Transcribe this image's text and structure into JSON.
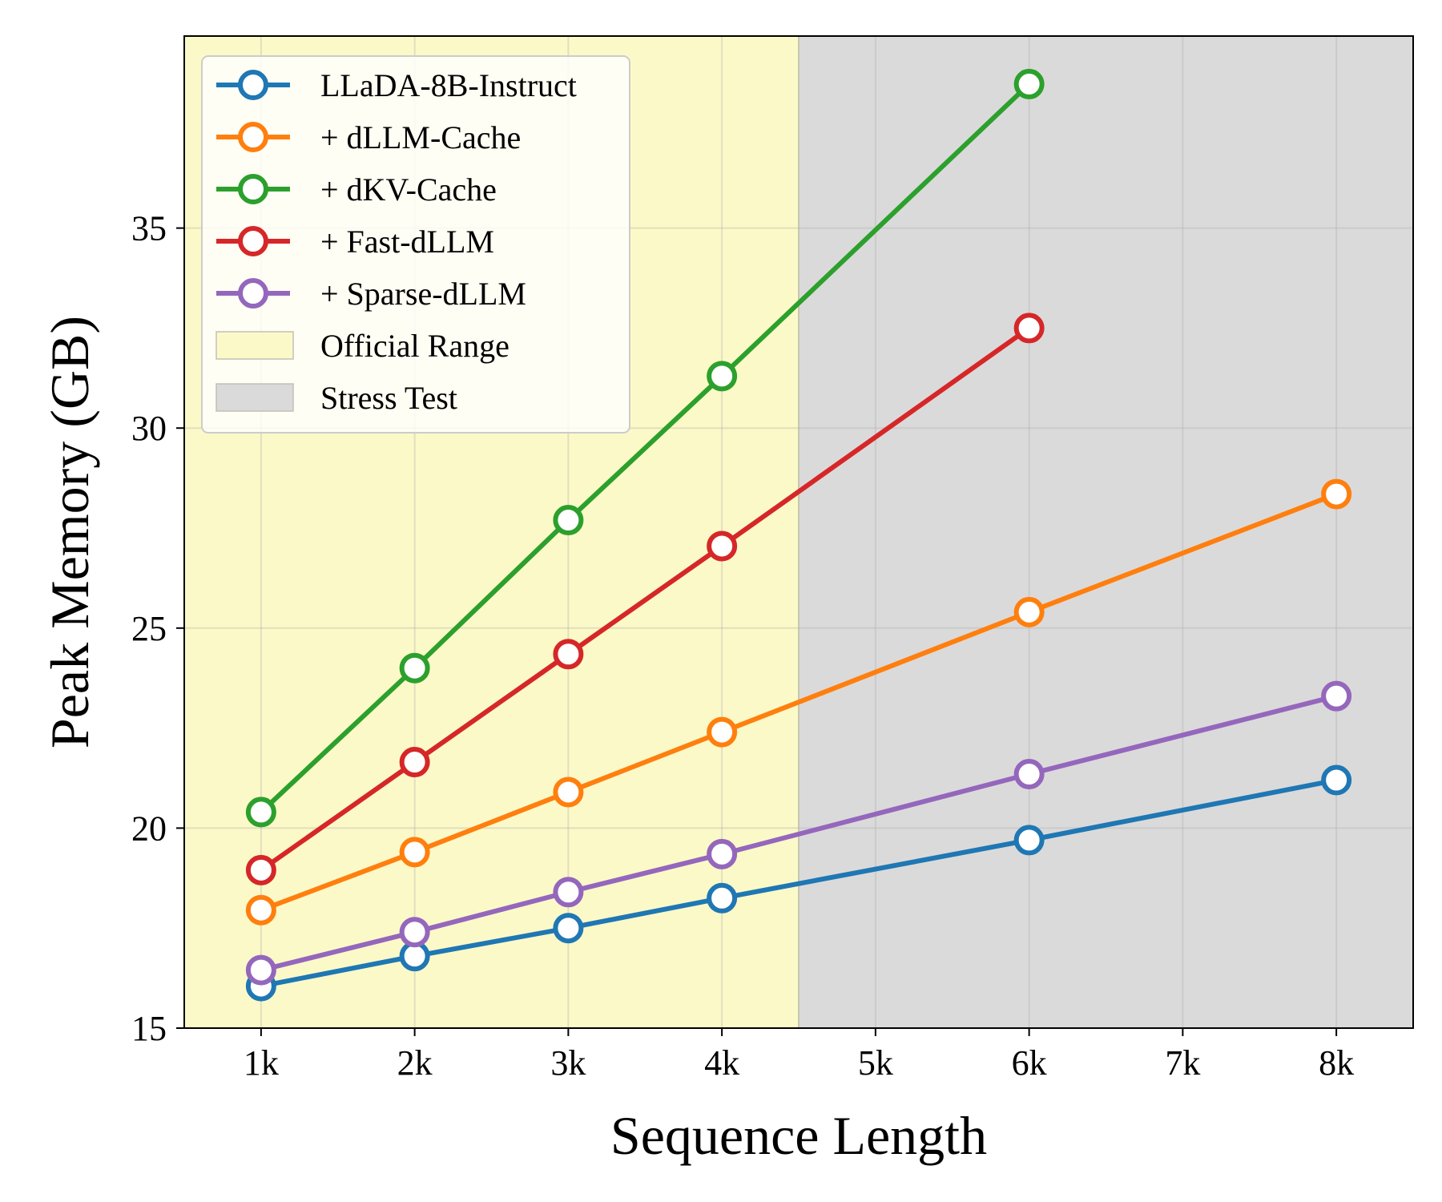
{
  "chart_data": {
    "type": "line",
    "title": "",
    "xlabel": "Sequence Length",
    "ylabel": "Peak Memory (GB)",
    "x_categories": [
      "1k",
      "2k",
      "3k",
      "4k",
      "5k",
      "6k",
      "7k",
      "8k"
    ],
    "xlim": [
      0.5,
      8.5
    ],
    "ylim": [
      15,
      39.8
    ],
    "y_ticks": [
      15,
      20,
      25,
      30,
      35
    ],
    "grid": true,
    "legend_position": "top-left",
    "regions": [
      {
        "name": "Official Range",
        "x_start": 0.5,
        "x_end": 4.5,
        "color": "#fcf9c8"
      },
      {
        "name": "Stress Test",
        "x_start": 4.5,
        "x_end": 8.5,
        "color": "#dbdada"
      }
    ],
    "series": [
      {
        "name": "LLaDA-8B-Instruct",
        "color": "#1f77b4",
        "x": [
          1,
          2,
          3,
          4,
          6,
          8
        ],
        "values": [
          16.05,
          16.8,
          17.5,
          18.25,
          19.7,
          21.2
        ]
      },
      {
        "name": "+ dLLM-Cache",
        "color": "#ff7f0e",
        "x": [
          1,
          2,
          3,
          4,
          6,
          8
        ],
        "values": [
          17.95,
          19.4,
          20.9,
          22.4,
          25.4,
          28.35
        ]
      },
      {
        "name": "+ dKV-Cache",
        "color": "#2ca02c",
        "x": [
          1,
          2,
          3,
          4,
          6
        ],
        "values": [
          20.4,
          24.0,
          27.7,
          31.3,
          38.6
        ]
      },
      {
        "name": "+ Fast-dLLM",
        "color": "#d62728",
        "x": [
          1,
          2,
          3,
          4,
          6
        ],
        "values": [
          18.95,
          21.65,
          24.35,
          27.05,
          32.5
        ]
      },
      {
        "name": "+ Sparse-dLLM",
        "color": "#9467bd",
        "x": [
          1,
          2,
          3,
          4,
          6,
          8
        ],
        "values": [
          16.45,
          17.4,
          18.4,
          19.35,
          21.35,
          23.3
        ]
      }
    ]
  }
}
